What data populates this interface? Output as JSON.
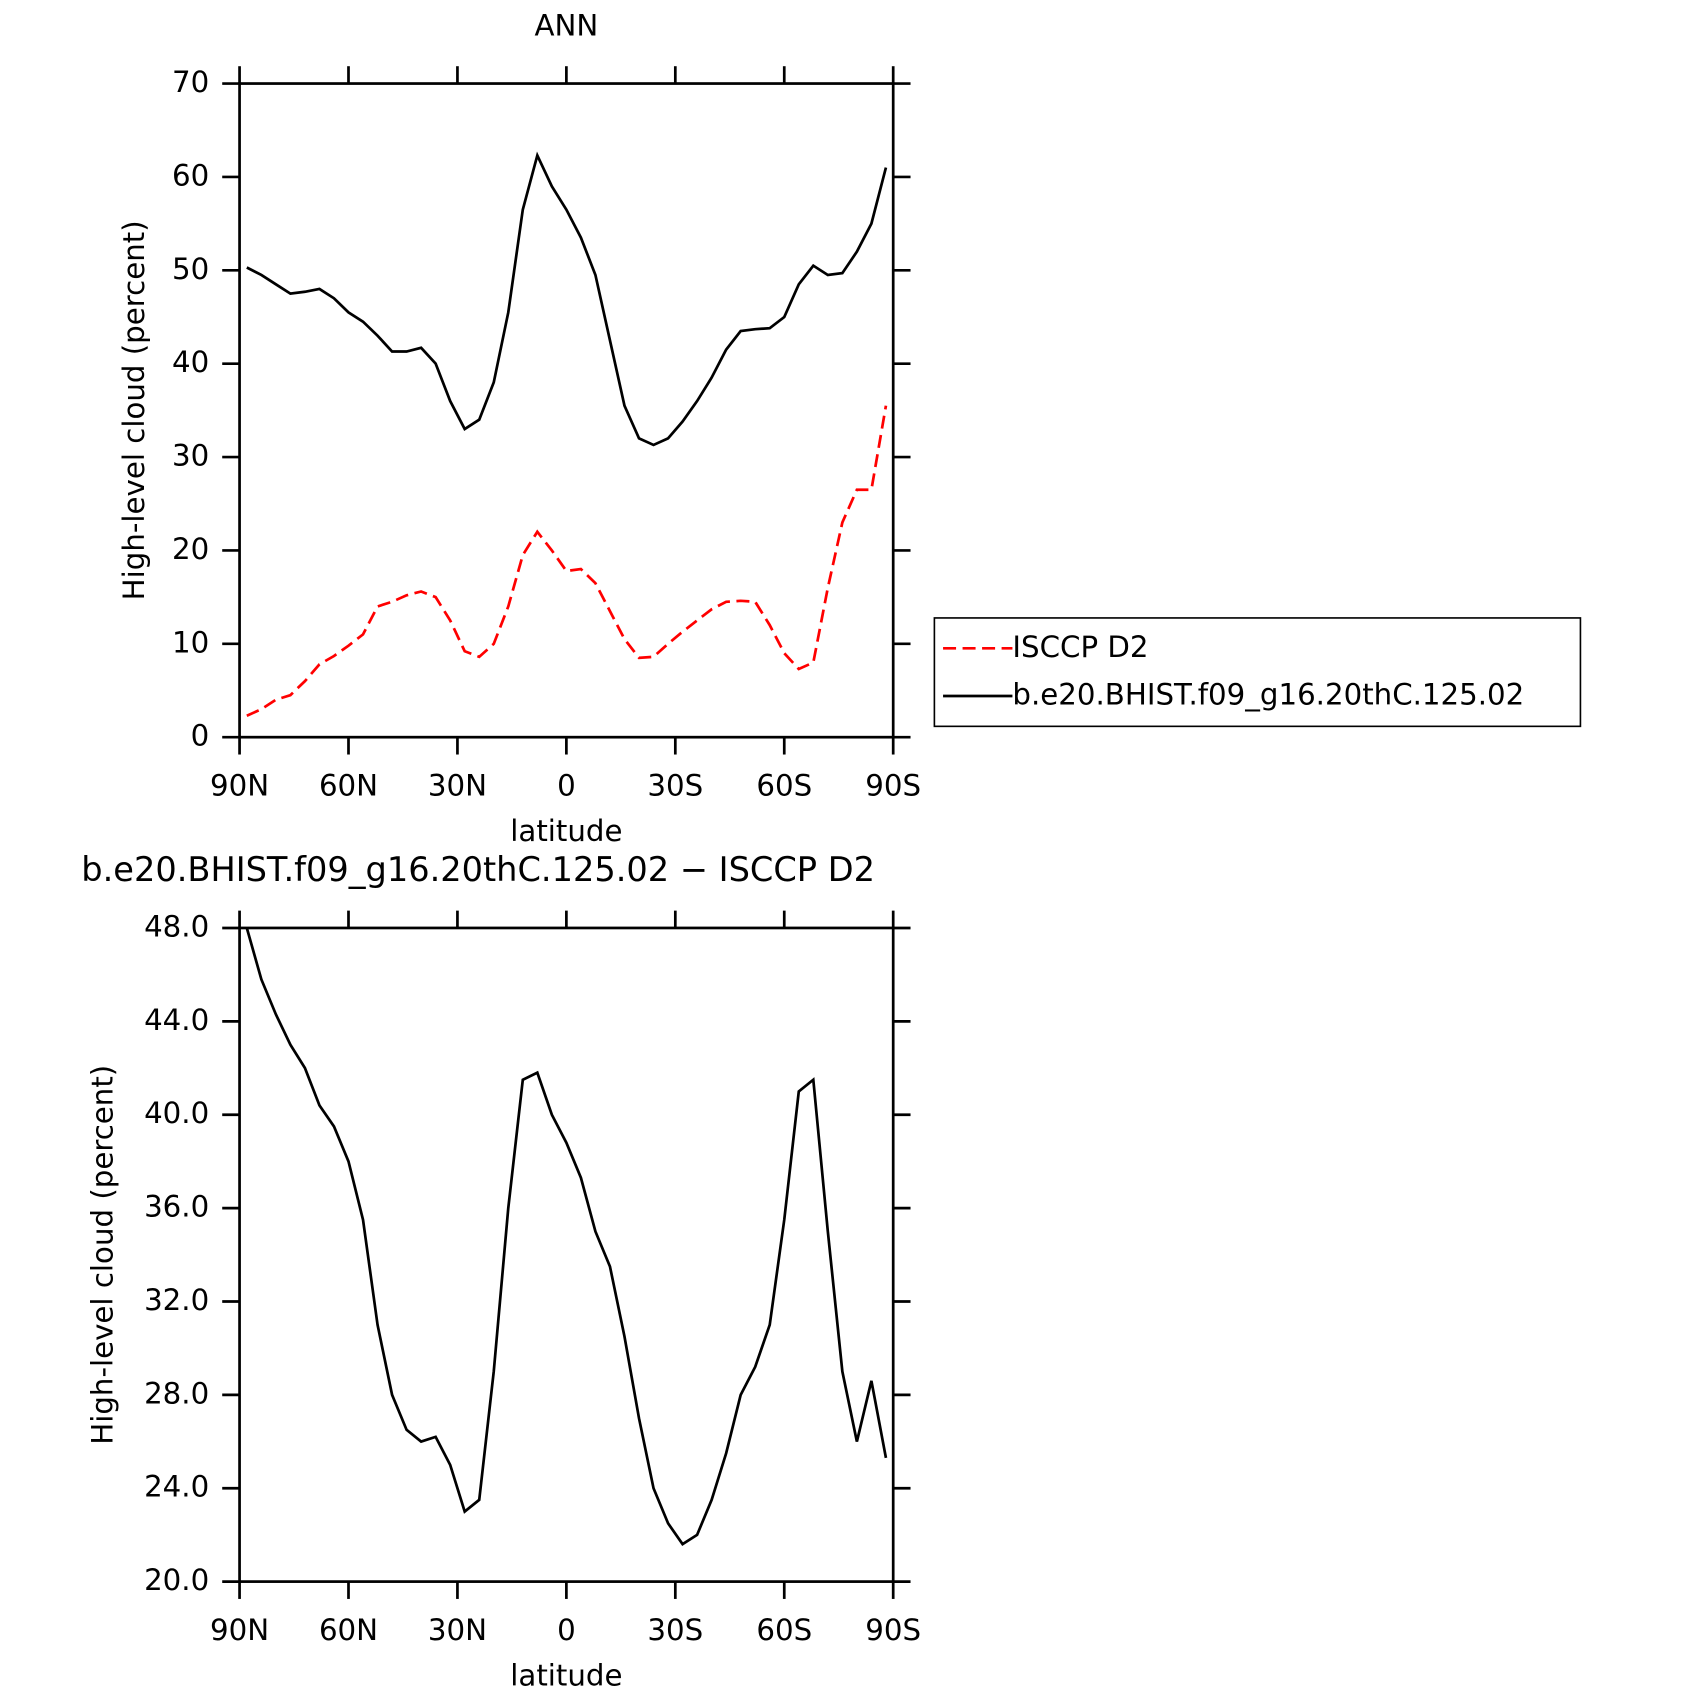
{
  "chart_data": [
    {
      "type": "line",
      "title": "ANN",
      "xlabel": "latitude",
      "ylabel": "High-level cloud (percent)",
      "x": [
        88,
        84,
        80,
        76,
        72,
        68,
        64,
        60,
        56,
        52,
        48,
        44,
        40,
        36,
        32,
        28,
        24,
        20,
        16,
        12,
        8,
        4,
        0,
        -4,
        -8,
        -12,
        -16,
        -20,
        -24,
        -28,
        -32,
        -36,
        -40,
        -44,
        -48,
        -52,
        -56,
        -60,
        -64,
        -68,
        -72,
        -76,
        -80,
        -84,
        -88
      ],
      "xlim": [
        90,
        -90
      ],
      "xticks": [
        {
          "value": 90,
          "label": "90N"
        },
        {
          "value": 60,
          "label": "60N"
        },
        {
          "value": 30,
          "label": "30N"
        },
        0,
        {
          "value": -30,
          "label": "30S"
        },
        {
          "value": -60,
          "label": "60S"
        },
        {
          "value": -90,
          "label": "90S"
        }
      ],
      "ylim": [
        0,
        70
      ],
      "yticks": [
        0,
        10,
        20,
        30,
        40,
        50,
        60,
        70
      ],
      "legend": "right",
      "series": [
        {
          "name": "ISCCP D2",
          "color": "#ff0000",
          "dashed": true,
          "values": [
            2.3,
            3,
            4,
            4.5,
            6,
            7.8,
            8.7,
            9.8,
            11,
            14,
            14.5,
            15.2,
            15.6,
            15,
            12.5,
            9.2,
            8.6,
            10,
            14,
            19.5,
            22,
            20,
            17.8,
            18,
            16.5,
            13.5,
            10.5,
            8.5,
            8.6,
            10,
            11.3,
            12.5,
            13.7,
            14.5,
            14.6,
            14.5,
            12,
            9,
            7.3,
            8,
            16,
            23,
            26.5,
            26.5,
            35.5
          ]
        },
        {
          "name": "b.e20.BHIST.f09_g16.20thC.125.02",
          "color": "#000000",
          "dashed": false,
          "values": [
            50.3,
            49.5,
            48.5,
            47.5,
            47.7,
            48,
            47,
            45.5,
            44.5,
            43,
            41.3,
            41.3,
            41.7,
            40,
            36,
            33,
            34,
            38,
            45.5,
            56.5,
            62.3,
            59,
            56.5,
            53.5,
            49.5,
            42.5,
            35.5,
            32,
            31.3,
            32,
            33.8,
            36,
            38.5,
            41.5,
            43.5,
            43.7,
            43.8,
            45,
            48.5,
            50.5,
            49.5,
            49.7,
            52,
            55,
            61
          ]
        }
      ]
    },
    {
      "type": "line",
      "title": "b.e20.BHIST.f09_g16.20thC.125.02 − ISCCP D2",
      "xlabel": "latitude",
      "ylabel": "High-level cloud (percent)",
      "x": [
        88,
        84,
        80,
        76,
        72,
        68,
        64,
        60,
        56,
        52,
        48,
        44,
        40,
        36,
        32,
        28,
        24,
        20,
        16,
        12,
        8,
        4,
        0,
        -4,
        -8,
        -12,
        -16,
        -20,
        -24,
        -28,
        -32,
        -36,
        -40,
        -44,
        -48,
        -52,
        -56,
        -60,
        -64,
        -68,
        -72,
        -76,
        -80,
        -84,
        -88
      ],
      "xlim": [
        90,
        -90
      ],
      "xticks": [
        {
          "value": 90,
          "label": "90N"
        },
        {
          "value": 60,
          "label": "60N"
        },
        {
          "value": 30,
          "label": "30N"
        },
        0,
        {
          "value": -30,
          "label": "30S"
        },
        {
          "value": -60,
          "label": "60S"
        },
        {
          "value": -90,
          "label": "90S"
        }
      ],
      "ylim": [
        20,
        48
      ],
      "yticks": [
        {
          "value": 20,
          "label": "20.0"
        },
        {
          "value": 24,
          "label": "24.0"
        },
        {
          "value": 28,
          "label": "28.0"
        },
        {
          "value": 32,
          "label": "32.0"
        },
        {
          "value": 36,
          "label": "36.0"
        },
        {
          "value": 40,
          "label": "40.0"
        },
        {
          "value": 44,
          "label": "44.0"
        },
        {
          "value": 48,
          "label": "48.0"
        }
      ],
      "series": [
        {
          "color": "#000000",
          "dashed": false,
          "values": [
            48,
            45.8,
            44.3,
            43,
            42,
            40.4,
            39.5,
            38,
            35.5,
            31,
            28,
            26.5,
            26,
            26.2,
            25,
            23,
            23.5,
            29,
            36,
            41.5,
            41.8,
            40,
            38.8,
            37.3,
            35,
            33.5,
            30.5,
            27,
            24,
            22.5,
            21.6,
            22,
            23.5,
            25.5,
            28,
            29.2,
            31,
            35.5,
            41,
            41.5,
            35,
            29,
            26,
            28.6,
            25.3
          ]
        }
      ]
    }
  ]
}
